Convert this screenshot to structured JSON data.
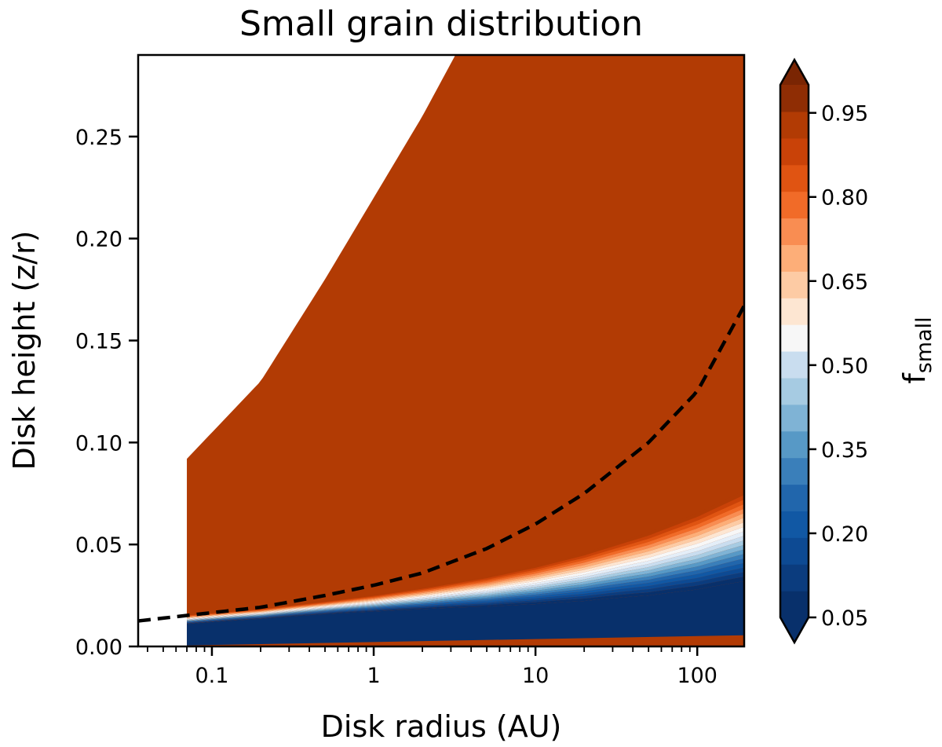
{
  "chart_data": {
    "type": "contourf",
    "title": "Small grain distribution",
    "xlabel": "Disk radius (AU)",
    "ylabel": "Disk height (z/r)",
    "xscale": "log",
    "xlim": [
      0.035,
      195
    ],
    "ylim": [
      0,
      0.29
    ],
    "x_ticks": [
      {
        "value": 0.1,
        "label": "0.1"
      },
      {
        "value": 1,
        "label": "1"
      },
      {
        "value": 10,
        "label": "10"
      },
      {
        "value": 100,
        "label": "100"
      }
    ],
    "y_ticks": [
      {
        "value": 0.0,
        "label": "0.00"
      },
      {
        "value": 0.05,
        "label": "0.05"
      },
      {
        "value": 0.1,
        "label": "0.10"
      },
      {
        "value": 0.15,
        "label": "0.15"
      },
      {
        "value": 0.2,
        "label": "0.20"
      },
      {
        "value": 0.25,
        "label": "0.25"
      }
    ],
    "colorbar": {
      "label_main": "f",
      "label_sub": "small",
      "range": [
        0.05,
        1.0
      ],
      "extend": "both",
      "levels": 20,
      "ticks": [
        {
          "value": 0.05,
          "label": "0.05"
        },
        {
          "value": 0.2,
          "label": "0.20"
        },
        {
          "value": 0.35,
          "label": "0.35"
        },
        {
          "value": 0.5,
          "label": "0.50"
        },
        {
          "value": 0.65,
          "label": "0.65"
        },
        {
          "value": 0.8,
          "label": "0.80"
        },
        {
          "value": 0.95,
          "label": "0.95"
        }
      ],
      "colors": [
        "#08306b",
        "#0b3c7e",
        "#0d4a93",
        "#1158a4",
        "#2166ac",
        "#3a7fba",
        "#5799c6",
        "#7fb3d5",
        "#a6cbe2",
        "#c9ddef",
        "#e4eef8",
        "#f7f7f7",
        "#fde6d2",
        "#fdcba4",
        "#fdae78",
        "#f98d52",
        "#f16b28",
        "#e05412",
        "#c94208",
        "#b23b04",
        "#8f2d04"
      ]
    },
    "regions": {
      "domain_x_min": 0.07,
      "domain_top_zr": [
        [
          0.07,
          0.092
        ],
        [
          0.2,
          0.13
        ],
        [
          0.5,
          0.18
        ],
        [
          1,
          0.22
        ],
        [
          2,
          0.26
        ],
        [
          3.2,
          0.29
        ]
      ],
      "mixed_region_color": "#b23b04",
      "settled_region_color": "#08306b"
    },
    "transition_curve": [
      [
        0.07,
        0.0125
      ],
      [
        0.2,
        0.0155
      ],
      [
        0.5,
        0.0192
      ],
      [
        1,
        0.0222
      ],
      [
        2,
        0.0258
      ],
      [
        5,
        0.0312
      ],
      [
        10,
        0.0365
      ],
      [
        20,
        0.0428
      ],
      [
        50,
        0.0529
      ],
      [
        100,
        0.0624
      ],
      [
        195,
        0.0735
      ]
    ],
    "dashed_line": [
      [
        0.035,
        0.0125
      ],
      [
        0.07,
        0.0152
      ],
      [
        0.2,
        0.0192
      ],
      [
        0.5,
        0.025
      ],
      [
        1,
        0.03
      ],
      [
        2,
        0.036
      ],
      [
        5,
        0.048
      ],
      [
        10,
        0.06
      ],
      [
        20,
        0.075
      ],
      [
        50,
        0.1
      ],
      [
        100,
        0.125
      ],
      [
        195,
        0.167
      ]
    ]
  }
}
